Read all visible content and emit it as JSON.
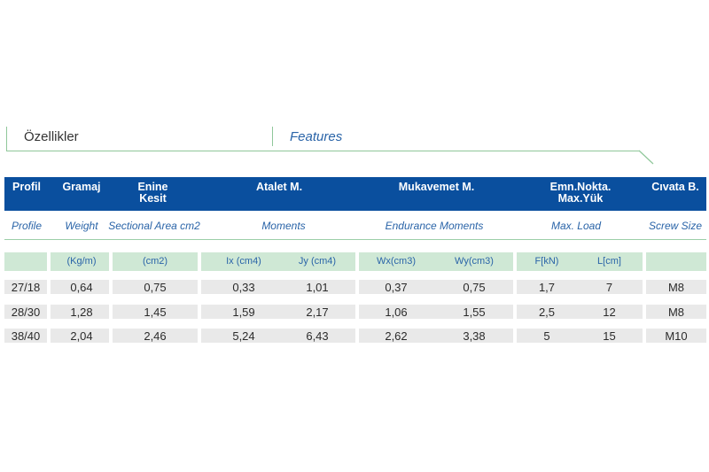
{
  "section": {
    "title_tr": "Özellikler",
    "title_en": "Features"
  },
  "header": {
    "profil": "Profil",
    "gramaj": "Gramaj",
    "enine": "Enine\nKesit",
    "atalet": "Atalet M.",
    "mukavemet": "Mukavemet M.",
    "emn": "Emn.Nokta.\nMax.Yük",
    "civata": "Cıvata B."
  },
  "subheader": {
    "profile": "Profile",
    "weight": "Weight",
    "sectional": "Sectional Area cm2",
    "moments": "Moments",
    "endurance": "Endurance Moments",
    "maxload": "Max. Load",
    "screw": "Screw Size"
  },
  "units": {
    "weight": "(Kg/m)",
    "area": "(cm2)",
    "ix": "Ix (cm4)",
    "jy": "Jy (cm4)",
    "wx": "Wx(cm3)",
    "wy": "Wy(cm3)",
    "f": "F[kN)",
    "l": "L[cm]"
  },
  "rows": [
    {
      "profil": "27/18",
      "gramaj": "0,64",
      "area": "0,75",
      "ix": "0,33",
      "jy": "1,01",
      "wx": "0,37",
      "wy": "0,75",
      "f": "1,7",
      "l": "7",
      "screw": "M8"
    },
    {
      "profil": "28/30",
      "gramaj": "1,28",
      "area": "1,45",
      "ix": "1,59",
      "jy": "2,17",
      "wx": "1,06",
      "wy": "1,55",
      "f": "2,5",
      "l": "12",
      "screw": "M8"
    },
    {
      "profil": "38/40",
      "gramaj": "2,04",
      "area": "2,46",
      "ix": "5,24",
      "jy": "6,43",
      "wx": "2,62",
      "wy": "3,38",
      "f": "5",
      "l": "15",
      "screw": "M10"
    }
  ],
  "colors": {
    "band": "#0a4f9e",
    "accent_green": "#8fc79a",
    "unit_row": "#cfe8d5",
    "data_row": "#e9e9e9",
    "italic_blue": "#2a64a8"
  }
}
